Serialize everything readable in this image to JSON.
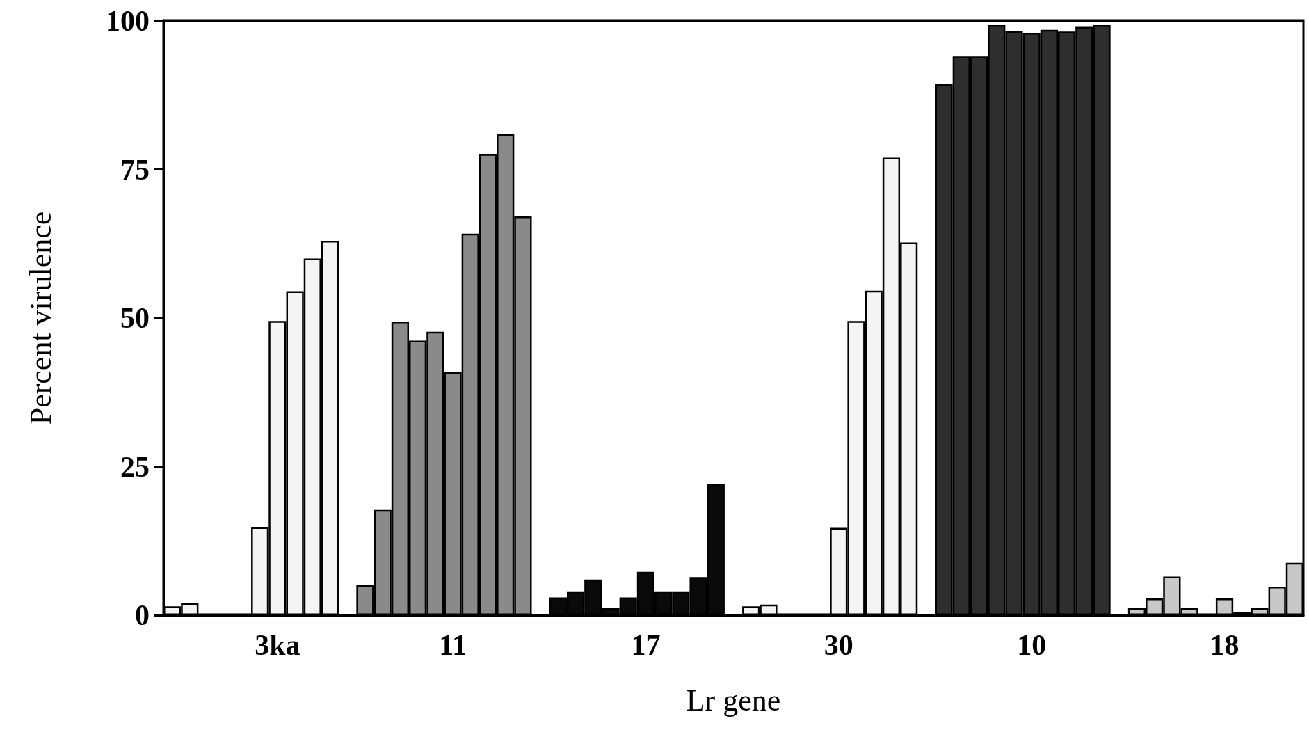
{
  "chart_data": {
    "type": "bar",
    "xlabel": "Lr gene",
    "ylabel": "Percent virulence",
    "categories": [
      null,
      null,
      null,
      null,
      null,
      null,
      "3ka",
      null,
      null,
      null,
      null,
      null,
      null,
      null,
      null,
      null,
      "11",
      null,
      null,
      null,
      null,
      null,
      null,
      null,
      null,
      null,
      null,
      "17",
      null,
      null,
      null,
      null,
      null,
      null,
      null,
      null,
      null,
      null,
      "30",
      null,
      null,
      null,
      null,
      null,
      null,
      null,
      null,
      null,
      null,
      "10",
      null,
      null,
      null,
      null,
      null,
      null,
      null,
      null,
      null,
      null,
      "18",
      null,
      null,
      null,
      null
    ],
    "values": [
      1.5,
      2,
      0.3,
      0.3,
      0.3,
      14.8,
      49.5,
      54.5,
      60,
      63,
      null,
      5.1,
      17.7,
      49.4,
      46.2,
      47.7,
      40.9,
      64.2,
      77.6,
      80.9,
      67.1,
      null,
      3,
      4,
      6,
      1.2,
      3,
      7.3,
      4,
      4,
      6.4,
      22,
      null,
      1.5,
      1.8,
      0.3,
      0.3,
      0.3,
      14.7,
      49.5,
      54.6,
      77,
      62.7,
      null,
      89.4,
      94,
      94,
      99.3,
      98.3,
      98,
      98.5,
      98.2,
      99,
      99.3,
      null,
      1.2,
      2.8,
      6.5,
      1.2,
      0.3,
      2.8,
      0.5,
      1.2,
      4.8,
      8.8
    ],
    "colors": [
      "#f4f4f4",
      "#f4f4f4",
      "#f4f4f4",
      "#f4f4f4",
      "#f4f4f4",
      "#f4f4f4",
      "#f4f4f4",
      "#f4f4f4",
      "#f4f4f4",
      "#f4f4f4",
      null,
      "#8a8a8a",
      "#8a8a8a",
      "#8a8a8a",
      "#8a8a8a",
      "#8a8a8a",
      "#8a8a8a",
      "#8a8a8a",
      "#8a8a8a",
      "#8a8a8a",
      "#8a8a8a",
      null,
      "#0a0a0a",
      "#0a0a0a",
      "#0a0a0a",
      "#0a0a0a",
      "#0a0a0a",
      "#0a0a0a",
      "#0a0a0a",
      "#0a0a0a",
      "#0a0a0a",
      "#0a0a0a",
      null,
      "#f4f4f4",
      "#f4f4f4",
      "#f4f4f4",
      "#f4f4f4",
      "#f4f4f4",
      "#f4f4f4",
      "#f4f4f4",
      "#f4f4f4",
      "#f4f4f4",
      "#f4f4f4",
      null,
      "#2e2e2e",
      "#2e2e2e",
      "#2e2e2e",
      "#2e2e2e",
      "#2e2e2e",
      "#2e2e2e",
      "#2e2e2e",
      "#2e2e2e",
      "#2e2e2e",
      "#2e2e2e",
      null,
      "#c8c8c8",
      "#c8c8c8",
      "#c8c8c8",
      "#c8c8c8",
      "#c8c8c8",
      "#c8c8c8",
      "#c8c8c8",
      "#c8c8c8",
      "#c8c8c8",
      "#c8c8c8"
    ],
    "ylim": [
      0,
      100
    ],
    "yticks": [
      0,
      25,
      50,
      75,
      100
    ],
    "grid": false
  }
}
